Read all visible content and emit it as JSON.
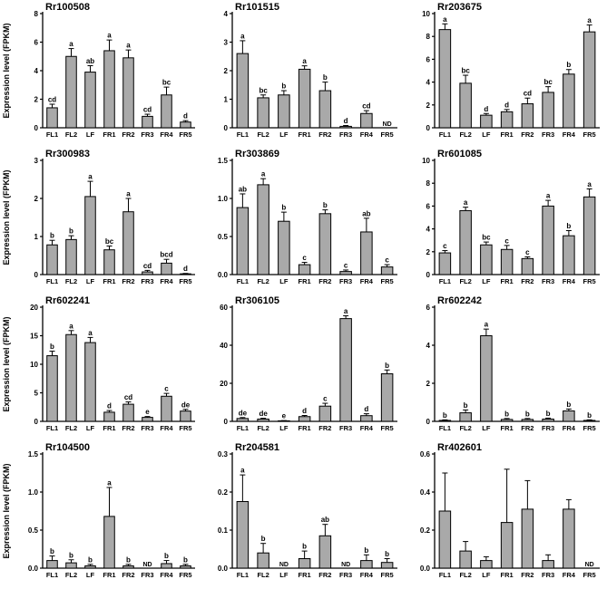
{
  "figure": {
    "ylabel": "Expression level (FPKM)",
    "categories": [
      "FL1",
      "FL2",
      "LF",
      "FR1",
      "FR2",
      "FR3",
      "FR4",
      "FR5"
    ],
    "bar_fill": "#a9a9a9",
    "bar_edge": "#000000",
    "text_color": "#000000",
    "nd_label": "ND"
  },
  "chart_data": [
    {
      "type": "bar",
      "title": "Rr100508",
      "categories": [
        "FL1",
        "FL2",
        "LF",
        "FR1",
        "FR2",
        "FR3",
        "FR4",
        "FR5"
      ],
      "values": [
        1.4,
        5.0,
        3.9,
        5.4,
        4.9,
        0.8,
        2.3,
        0.4
      ],
      "errors": [
        0.25,
        0.55,
        0.45,
        0.75,
        0.55,
        0.15,
        0.55,
        0.1
      ],
      "labels": [
        "cd",
        "a",
        "ab",
        "a",
        "a",
        "cd",
        "bc",
        "d"
      ],
      "ylim": [
        0,
        8
      ],
      "yticks": [
        "0",
        "2",
        "4",
        "6",
        "8"
      ],
      "show_ylabel": true
    },
    {
      "type": "bar",
      "title": "Rr101515",
      "categories": [
        "FL1",
        "FL2",
        "LF",
        "FR1",
        "FR2",
        "FR3",
        "FR4",
        "FR5"
      ],
      "values": [
        2.6,
        1.05,
        1.15,
        2.05,
        1.3,
        0.05,
        0.5,
        0
      ],
      "errors": [
        0.45,
        0.1,
        0.15,
        0.12,
        0.3,
        0.03,
        0.1,
        0
      ],
      "labels": [
        "a",
        "bc",
        "b",
        "a",
        "b",
        "d",
        "cd",
        "ND"
      ],
      "ylim": [
        0,
        4
      ],
      "yticks": [
        "0",
        "1",
        "2",
        "3",
        "4"
      ],
      "show_ylabel": false
    },
    {
      "type": "bar",
      "title": "Rr203675",
      "categories": [
        "FL1",
        "FL2",
        "LF",
        "FR1",
        "FR2",
        "FR3",
        "FR4",
        "FR5"
      ],
      "values": [
        8.6,
        3.9,
        1.1,
        1.4,
        2.1,
        3.1,
        4.7,
        8.4
      ],
      "errors": [
        0.5,
        0.7,
        0.15,
        0.2,
        0.5,
        0.5,
        0.4,
        0.6
      ],
      "labels": [
        "a",
        "bc",
        "d",
        "d",
        "cd",
        "bc",
        "b",
        "a"
      ],
      "ylim": [
        0,
        10
      ],
      "yticks": [
        "0",
        "2",
        "4",
        "6",
        "8",
        "10"
      ],
      "show_ylabel": false
    },
    {
      "type": "bar",
      "title": "Rr300983",
      "categories": [
        "FL1",
        "FL2",
        "LF",
        "FR1",
        "FR2",
        "FR3",
        "FR4",
        "FR5"
      ],
      "values": [
        0.78,
        0.92,
        2.05,
        0.65,
        1.65,
        0.07,
        0.3,
        0.02
      ],
      "errors": [
        0.12,
        0.1,
        0.4,
        0.1,
        0.35,
        0.04,
        0.1,
        0.01
      ],
      "labels": [
        "b",
        "b",
        "a",
        "bc",
        "a",
        "cd",
        "bcd",
        "d"
      ],
      "ylim": [
        0,
        3
      ],
      "yticks": [
        "0",
        "1",
        "2",
        "3"
      ],
      "show_ylabel": true
    },
    {
      "type": "bar",
      "title": "Rr303869",
      "categories": [
        "FL1",
        "FL2",
        "LF",
        "FR1",
        "FR2",
        "FR3",
        "FR4",
        "FR5"
      ],
      "values": [
        0.88,
        1.18,
        0.7,
        0.13,
        0.8,
        0.04,
        0.56,
        0.1
      ],
      "errors": [
        0.18,
        0.08,
        0.12,
        0.03,
        0.05,
        0.02,
        0.18,
        0.03
      ],
      "labels": [
        "ab",
        "a",
        "b",
        "c",
        "b",
        "c",
        "ab",
        "c"
      ],
      "ylim": [
        0,
        1.5
      ],
      "yticks": [
        "0.0",
        "0.5",
        "1.0",
        "1.5"
      ],
      "show_ylabel": false
    },
    {
      "type": "bar",
      "title": "Rr601085",
      "categories": [
        "FL1",
        "FL2",
        "LF",
        "FR1",
        "FR2",
        "FR3",
        "FR4",
        "FR5"
      ],
      "values": [
        1.9,
        5.6,
        2.6,
        2.2,
        1.4,
        6.0,
        3.4,
        6.8
      ],
      "errors": [
        0.2,
        0.3,
        0.25,
        0.35,
        0.15,
        0.5,
        0.45,
        0.7
      ],
      "labels": [
        "c",
        "a",
        "bc",
        "c",
        "c",
        "a",
        "b",
        "a"
      ],
      "ylim": [
        0,
        10
      ],
      "yticks": [
        "0",
        "2",
        "4",
        "6",
        "8",
        "10"
      ],
      "show_ylabel": false
    },
    {
      "type": "bar",
      "title": "Rr602241",
      "categories": [
        "FL1",
        "FL2",
        "LF",
        "FR1",
        "FR2",
        "FR3",
        "FR4",
        "FR5"
      ],
      "values": [
        11.5,
        15.2,
        13.8,
        1.6,
        3.0,
        0.7,
        4.4,
        1.8
      ],
      "errors": [
        0.8,
        0.7,
        0.9,
        0.3,
        0.4,
        0.15,
        0.5,
        0.3
      ],
      "labels": [
        "b",
        "a",
        "a",
        "d",
        "cd",
        "e",
        "c",
        "de"
      ],
      "ylim": [
        0,
        20
      ],
      "yticks": [
        "0",
        "5",
        "10",
        "15",
        "20"
      ],
      "show_ylabel": true
    },
    {
      "type": "bar",
      "title": "Rr306105",
      "categories": [
        "FL1",
        "FL2",
        "LF",
        "FR1",
        "FR2",
        "FR3",
        "FR4",
        "FR5"
      ],
      "values": [
        1.5,
        1.2,
        0.3,
        2.5,
        8,
        54,
        3,
        25
      ],
      "errors": [
        0.5,
        0.4,
        0.1,
        0.6,
        1.5,
        1.5,
        1,
        2
      ],
      "labels": [
        "de",
        "de",
        "e",
        "d",
        "c",
        "a",
        "d",
        "b"
      ],
      "ylim": [
        0,
        60
      ],
      "yticks": [
        "0",
        "20",
        "40",
        "60"
      ],
      "show_ylabel": false
    },
    {
      "type": "bar",
      "title": "Rr602242",
      "categories": [
        "FL1",
        "FL2",
        "LF",
        "FR1",
        "FR2",
        "FR3",
        "FR4",
        "FR5"
      ],
      "values": [
        0.05,
        0.45,
        4.5,
        0.1,
        0.1,
        0.12,
        0.55,
        0.05
      ],
      "errors": [
        0.03,
        0.15,
        0.35,
        0.05,
        0.05,
        0.05,
        0.1,
        0.03
      ],
      "labels": [
        "b",
        "b",
        "a",
        "b",
        "b",
        "b",
        "b",
        "b"
      ],
      "ylim": [
        0,
        6
      ],
      "yticks": [
        "0",
        "2",
        "4",
        "6"
      ],
      "show_ylabel": false
    },
    {
      "type": "bar",
      "title": "Rr104500",
      "categories": [
        "FL1",
        "FL2",
        "LF",
        "FR1",
        "FR2",
        "FR3",
        "FR4",
        "FR5"
      ],
      "values": [
        0.1,
        0.07,
        0.03,
        0.68,
        0.03,
        0,
        0.06,
        0.03
      ],
      "errors": [
        0.06,
        0.04,
        0.02,
        0.38,
        0.02,
        0,
        0.04,
        0.02
      ],
      "labels": [
        "b",
        "b",
        "b",
        "a",
        "b",
        "ND",
        "b",
        "b"
      ],
      "ylim": [
        0,
        1.5
      ],
      "yticks": [
        "0.0",
        "0.5",
        "1.0",
        "1.5"
      ],
      "show_ylabel": true
    },
    {
      "type": "bar",
      "title": "Rr204581",
      "categories": [
        "FL1",
        "FL2",
        "LF",
        "FR1",
        "FR2",
        "FR3",
        "FR4",
        "FR5"
      ],
      "values": [
        0.175,
        0.04,
        0,
        0.025,
        0.085,
        0,
        0.02,
        0.015
      ],
      "errors": [
        0.07,
        0.025,
        0,
        0.02,
        0.03,
        0,
        0.015,
        0.01
      ],
      "labels": [
        "a",
        "b",
        "ND",
        "b",
        "ab",
        "ND",
        "b",
        "b"
      ],
      "ylim": [
        0,
        0.3
      ],
      "yticks": [
        "0.0",
        "0.1",
        "0.2",
        "0.3"
      ],
      "show_ylabel": false
    },
    {
      "type": "bar",
      "title": "Rr402601",
      "categories": [
        "FL1",
        "FL2",
        "LF",
        "FR1",
        "FR2",
        "FR3",
        "FR4",
        "FR5"
      ],
      "values": [
        0.3,
        0.09,
        0.04,
        0.24,
        0.31,
        0.04,
        0.31,
        0
      ],
      "errors": [
        0.2,
        0.05,
        0.02,
        0.28,
        0.15,
        0.03,
        0.05,
        0
      ],
      "labels": [
        "",
        "",
        "",
        "",
        "",
        "",
        "",
        "ND"
      ],
      "ylim": [
        0,
        0.6
      ],
      "yticks": [
        "0.0",
        "0.2",
        "0.4",
        "0.6"
      ],
      "show_ylabel": false
    }
  ]
}
